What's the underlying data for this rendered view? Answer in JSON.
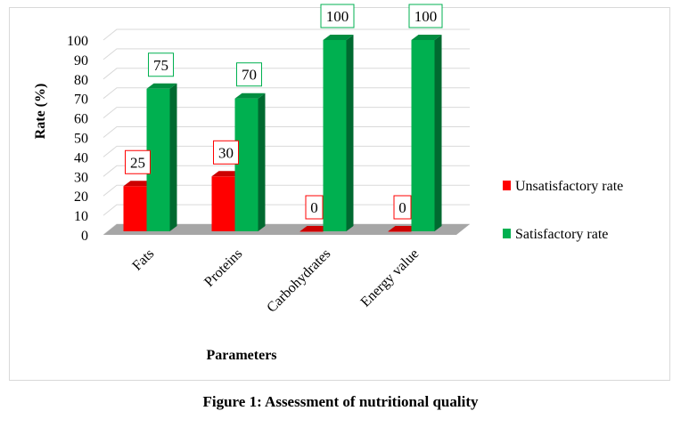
{
  "figure": {
    "caption": "Figure 1: Assessment of nutritional quality"
  },
  "chart_data": {
    "type": "bar",
    "categories": [
      "Fats",
      "Proteins",
      "Carbohydrates",
      "Energy value"
    ],
    "series": [
      {
        "name": "Unsatisfactory rate",
        "values": [
          25,
          30,
          0,
          0
        ],
        "color": "#ff0000"
      },
      {
        "name": "Satisfactory rate",
        "values": [
          75,
          70,
          100,
          100
        ],
        "color": "#00b050"
      }
    ],
    "xlabel": "Parameters",
    "ylabel": "Rate (%)",
    "ylim": [
      0,
      100
    ],
    "yticks": [
      0,
      10,
      20,
      30,
      40,
      50,
      60,
      70,
      80,
      90,
      100
    ],
    "grid": true,
    "legend_position": "right",
    "data_labels": true,
    "style": "3d-clustered-column"
  }
}
